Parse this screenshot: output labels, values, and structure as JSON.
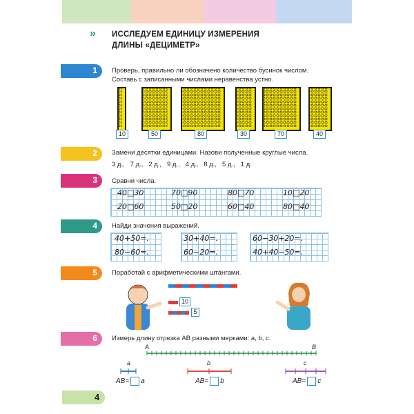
{
  "colors": {
    "blue": "#2f86d0",
    "yellow": "#f6c21e",
    "raspberry": "#d9337a",
    "teal": "#2f9a8a",
    "orange": "#f28a1e",
    "pink": "#e56ea8",
    "lightgreen": "#c7e3a8",
    "grid": "#8fc1e7"
  },
  "header": {
    "arrows": "»",
    "title_line1": "ИССЛЕДУЕМ ЕДИНИЦУ ИЗМЕРЕНИЯ",
    "title_line2": "ДЛИНЫ «ДЕЦИМЕТР»"
  },
  "task1": {
    "number": "1",
    "text1": "Проверь, правильно ли обозначено количество бусинок числом.",
    "text2": "Составь с записанными числами неравенства устно.",
    "labels": [
      "10",
      "50",
      "80",
      "30",
      "70",
      "40"
    ]
  },
  "task2": {
    "number": "2",
    "text": "Замени десятки единицами. Назови полученные круглые числа.",
    "items": "3 д.,   7 д.,   2 д.,   9 д.,   4 д.,   8 д.,   5 д.,   1 д."
  },
  "task3": {
    "number": "3",
    "text": "Сравни числа.",
    "cells": [
      [
        "40□30",
        "20□60"
      ],
      [
        "70□90",
        "50□20"
      ],
      [
        "80□70",
        "60□40"
      ],
      [
        "10□20",
        "80□40"
      ]
    ]
  },
  "task4": {
    "number": "4",
    "text": "Найди значения выражений.",
    "cells": [
      [
        "40+50=.",
        "80−60=."
      ],
      [
        "30+40=.",
        "60−20=."
      ],
      [
        "60−30+20=.",
        "40+40−50=."
      ]
    ]
  },
  "task5": {
    "number": "5",
    "text": "Поработай с арифметическими штангами.",
    "box10": "10",
    "box5": "5"
  },
  "task6": {
    "number": "6",
    "text": "Измерь длину отрезка AB разными мерками: a, b, c.",
    "point_a": "A",
    "point_b": "B",
    "measures": [
      {
        "name": "a",
        "answer": "AB=",
        "unit": "a"
      },
      {
        "name": "b",
        "answer": "AB=",
        "unit": "b"
      },
      {
        "name": "c",
        "answer": "AB=",
        "unit": "c"
      }
    ]
  },
  "footer": {
    "page_number": "4"
  }
}
